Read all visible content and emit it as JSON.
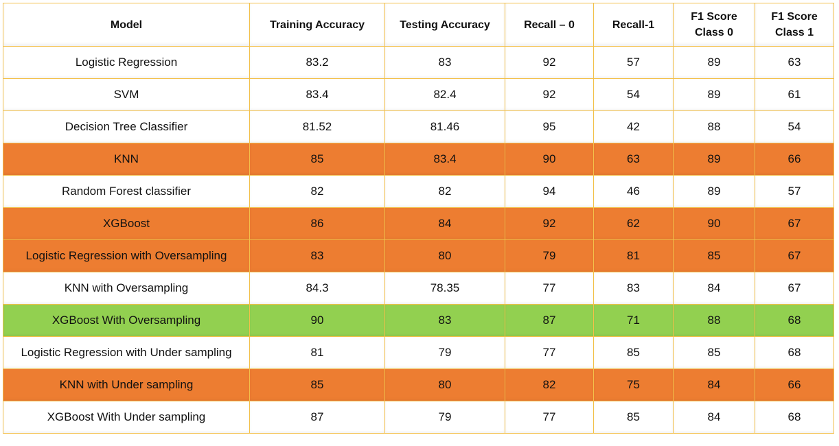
{
  "chart_data": {
    "type": "table",
    "columns": [
      "Model",
      "Training Accuracy",
      "Testing Accuracy",
      "Recall – 0",
      "Recall-1",
      "F1 Score Class 0",
      "F1 Score Class 1"
    ],
    "header_lines": [
      [
        "Model"
      ],
      [
        "Training Accuracy"
      ],
      [
        "Testing Accuracy"
      ],
      [
        "Recall – 0"
      ],
      [
        "Recall-1"
      ],
      [
        "F1 Score",
        "Class 0"
      ],
      [
        "F1 Score",
        "Class 1"
      ]
    ],
    "rows": [
      {
        "cells": [
          "Logistic Regression",
          "83.2",
          "83",
          "92",
          "57",
          "89",
          "63"
        ],
        "highlight": "none"
      },
      {
        "cells": [
          "SVM",
          "83.4",
          "82.4",
          "92",
          "54",
          "89",
          "61"
        ],
        "highlight": "none"
      },
      {
        "cells": [
          "Decision Tree Classifier",
          "81.52",
          "81.46",
          "95",
          "42",
          "88",
          "54"
        ],
        "highlight": "none"
      },
      {
        "cells": [
          "KNN",
          "85",
          "83.4",
          "90",
          "63",
          "89",
          "66"
        ],
        "highlight": "orange"
      },
      {
        "cells": [
          "Random Forest classifier",
          "82",
          "82",
          "94",
          "46",
          "89",
          "57"
        ],
        "highlight": "none"
      },
      {
        "cells": [
          "XGBoost",
          "86",
          "84",
          "92",
          "62",
          "90",
          "67"
        ],
        "highlight": "orange"
      },
      {
        "cells": [
          "Logistic Regression with Oversampling",
          "83",
          "80",
          "79",
          "81",
          "85",
          "67"
        ],
        "highlight": "orange"
      },
      {
        "cells": [
          "KNN with Oversampling",
          "84.3",
          "78.35",
          "77",
          "83",
          "84",
          "67"
        ],
        "highlight": "none"
      },
      {
        "cells": [
          "XGBoost With Oversampling",
          "90",
          "83",
          "87",
          "71",
          "88",
          "68"
        ],
        "highlight": "green"
      },
      {
        "cells": [
          "Logistic Regression with Under sampling",
          "81",
          "79",
          "77",
          "85",
          "85",
          "68"
        ],
        "highlight": "none"
      },
      {
        "cells": [
          "KNN with Under sampling",
          "85",
          "80",
          "82",
          "75",
          "84",
          "66"
        ],
        "highlight": "orange"
      },
      {
        "cells": [
          "XGBoost With Under sampling",
          "87",
          "79",
          "77",
          "85",
          "84",
          "68"
        ],
        "highlight": "none"
      }
    ],
    "colors": {
      "border": "#f3c04a",
      "highlight_orange": "#ed7d31",
      "highlight_green": "#92d050",
      "background": "#ffffff"
    }
  }
}
